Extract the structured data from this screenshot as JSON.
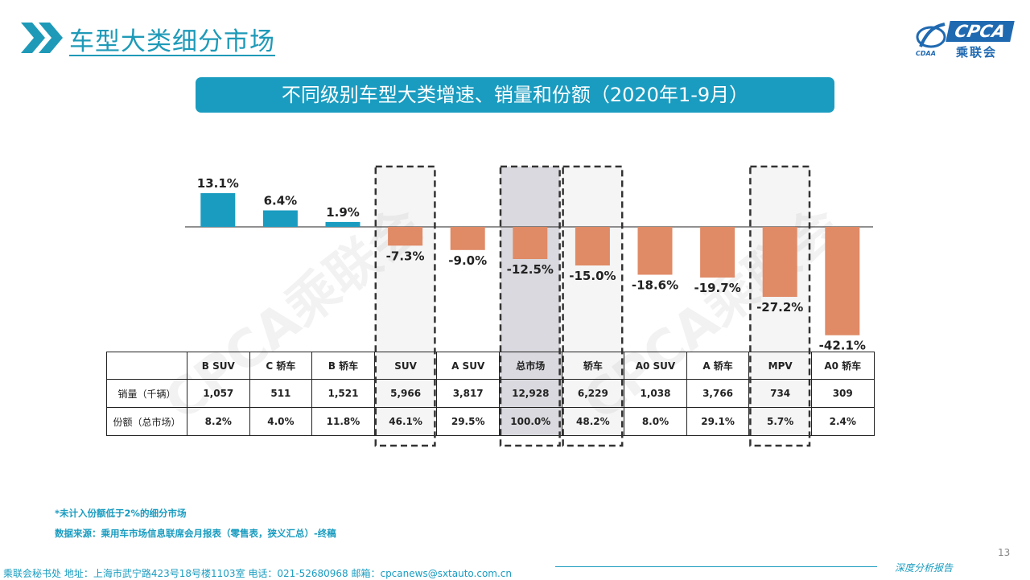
{
  "header": {
    "title": "车型大类细分市场",
    "logo_text": "CPCA",
    "logo_cn": "乘联会",
    "logo_sub": "CDAA"
  },
  "banner": "不同级别车型大类增速、销量和份额（2020年1-9月）",
  "colors": {
    "positive": "#1a9cc0",
    "negative": "#e08a66",
    "accent": "#1a9cc0"
  },
  "chart_data": {
    "type": "bar",
    "categories": [
      "B SUV",
      "C 轿车",
      "B 轿车",
      "SUV",
      "A SUV",
      "总市场",
      "轿车",
      "A0 SUV",
      "A 轿车",
      "MPV",
      "A0 轿车"
    ],
    "values": [
      13.1,
      6.4,
      1.9,
      -7.3,
      -9.0,
      -12.5,
      -15.0,
      -18.6,
      -19.7,
      -27.2,
      -42.1
    ],
    "value_labels": [
      "13.1%",
      "6.4%",
      "1.9%",
      "-7.3%",
      "-9.0%",
      "-12.5%",
      "-15.0%",
      "-18.6%",
      "-19.7%",
      "-27.2%",
      "-42.1%"
    ],
    "highlighted": [
      "SUV",
      "总市场",
      "轿车",
      "MPV"
    ],
    "ylim": [
      -42.1,
      13.1
    ],
    "grid": false
  },
  "table": {
    "rows": [
      {
        "label": "销量（千辆）",
        "values": [
          "1,057",
          "511",
          "1,521",
          "5,966",
          "3,817",
          "12,928",
          "6,229",
          "1,038",
          "3,766",
          "734",
          "309"
        ]
      },
      {
        "label": "份额（总市场）",
        "values": [
          "8.2%",
          "4.0%",
          "11.8%",
          "46.1%",
          "29.5%",
          "100.0%",
          "48.2%",
          "8.0%",
          "29.1%",
          "5.7%",
          "2.4%"
        ]
      }
    ]
  },
  "notes": {
    "line1": "*未计入份额低于2%的细分市场",
    "line2": "数据来源：乘用车市场信息联席会月报表（零售表，狭义汇总）-终稿"
  },
  "footer": {
    "address": "乘联会秘书处   地址：上海市武宁路423号18号楼1103室   电话：021-52680968   邮箱：cpcanews@sxtauto.com.cn",
    "brand": "深度分析报告",
    "page": "13"
  },
  "watermark": "CPCA乘联会"
}
